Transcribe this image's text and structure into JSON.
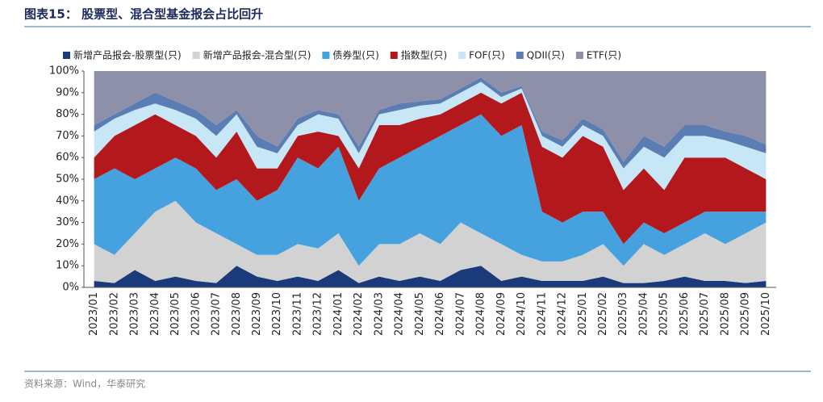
{
  "chart_data": {
    "type": "stacked_area",
    "title": "图表15： 股票型、混合型基金报会占比回升",
    "source": "资料来源：Wind，华泰研究",
    "categories": [
      "2023/01",
      "2023/02",
      "2023/03",
      "2023/04",
      "2023/05",
      "2023/06",
      "2023/07",
      "2023/08",
      "2023/09",
      "2023/10",
      "2023/11",
      "2023/12",
      "2024/01",
      "2024/02",
      "2024/03",
      "2024/04",
      "2024/05",
      "2024/06",
      "2024/07",
      "2024/08",
      "2024/09",
      "2024/10",
      "2024/11",
      "2024/12",
      "2025/01",
      "2025/02",
      "2025/03",
      "2025/04",
      "2025/05",
      "2025/06",
      "2025/07",
      "2025/08",
      "2025/09",
      "2025/10"
    ],
    "series": [
      {
        "name": "新增产品报会-股票型(只)",
        "color": "#1a3a7a",
        "values": [
          3,
          2,
          8,
          3,
          5,
          3,
          2,
          10,
          5,
          3,
          5,
          3,
          8,
          2,
          5,
          3,
          5,
          3,
          8,
          10,
          3,
          5,
          3,
          3,
          3,
          5,
          2,
          2,
          3,
          5,
          3,
          3,
          2,
          3
        ]
      },
      {
        "name": "新增产品报会-混合型(只)",
        "color": "#d2d2d2",
        "values": [
          17,
          13,
          17,
          32,
          35,
          27,
          23,
          10,
          10,
          12,
          15,
          15,
          17,
          8,
          15,
          17,
          20,
          17,
          22,
          15,
          17,
          10,
          9,
          9,
          12,
          15,
          8,
          18,
          12,
          15,
          22,
          17,
          23,
          27
        ]
      },
      {
        "name": "债券型(只)",
        "color": "#45a2df",
        "values": [
          30,
          40,
          25,
          20,
          20,
          25,
          20,
          30,
          25,
          30,
          40,
          37,
          40,
          30,
          35,
          40,
          40,
          50,
          45,
          55,
          50,
          60,
          23,
          18,
          20,
          15,
          10,
          10,
          10,
          10,
          10,
          15,
          10,
          5
        ]
      },
      {
        "name": "指数型(只)",
        "color": "#b3191c",
        "values": [
          10,
          15,
          25,
          25,
          15,
          15,
          15,
          22,
          15,
          10,
          10,
          17,
          5,
          15,
          20,
          15,
          13,
          10,
          10,
          10,
          15,
          15,
          30,
          30,
          35,
          30,
          25,
          25,
          20,
          30,
          25,
          25,
          20,
          15
        ]
      },
      {
        "name": "FOF(只)",
        "color": "#c7e6f6",
        "values": [
          12,
          8,
          7,
          5,
          7,
          8,
          10,
          8,
          10,
          7,
          5,
          8,
          8,
          7,
          5,
          7,
          6,
          5,
          5,
          5,
          3,
          2,
          5,
          5,
          5,
          5,
          10,
          10,
          15,
          10,
          10,
          8,
          10,
          12
        ]
      },
      {
        "name": "QDII(只)",
        "color": "#5a7db3",
        "values": [
          3,
          2,
          3,
          5,
          4,
          4,
          5,
          2,
          5,
          3,
          3,
          2,
          2,
          3,
          2,
          3,
          2,
          2,
          2,
          2,
          2,
          1,
          2,
          3,
          3,
          3,
          3,
          5,
          5,
          5,
          5,
          4,
          5,
          4
        ]
      },
      {
        "name": "ETF(只)",
        "color": "#8e8fa8",
        "values": [
          25,
          20,
          15,
          10,
          14,
          18,
          25,
          18,
          30,
          35,
          22,
          18,
          20,
          35,
          18,
          15,
          14,
          13,
          8,
          3,
          10,
          7,
          28,
          32,
          22,
          27,
          42,
          30,
          35,
          25,
          25,
          28,
          30,
          34
        ]
      }
    ],
    "ylim": [
      0,
      100
    ],
    "yticks": [
      {
        "value": 0,
        "label": "0%"
      },
      {
        "value": 10,
        "label": "10%"
      },
      {
        "value": 20,
        "label": "20%"
      },
      {
        "value": 30,
        "label": "30%"
      },
      {
        "value": 40,
        "label": "40%"
      },
      {
        "value": 50,
        "label": "50%"
      },
      {
        "value": 60,
        "label": "60%"
      },
      {
        "value": 70,
        "label": "70%"
      },
      {
        "value": 80,
        "label": "80%"
      },
      {
        "value": 90,
        "label": "90%"
      },
      {
        "value": 100,
        "label": "100%"
      }
    ]
  }
}
